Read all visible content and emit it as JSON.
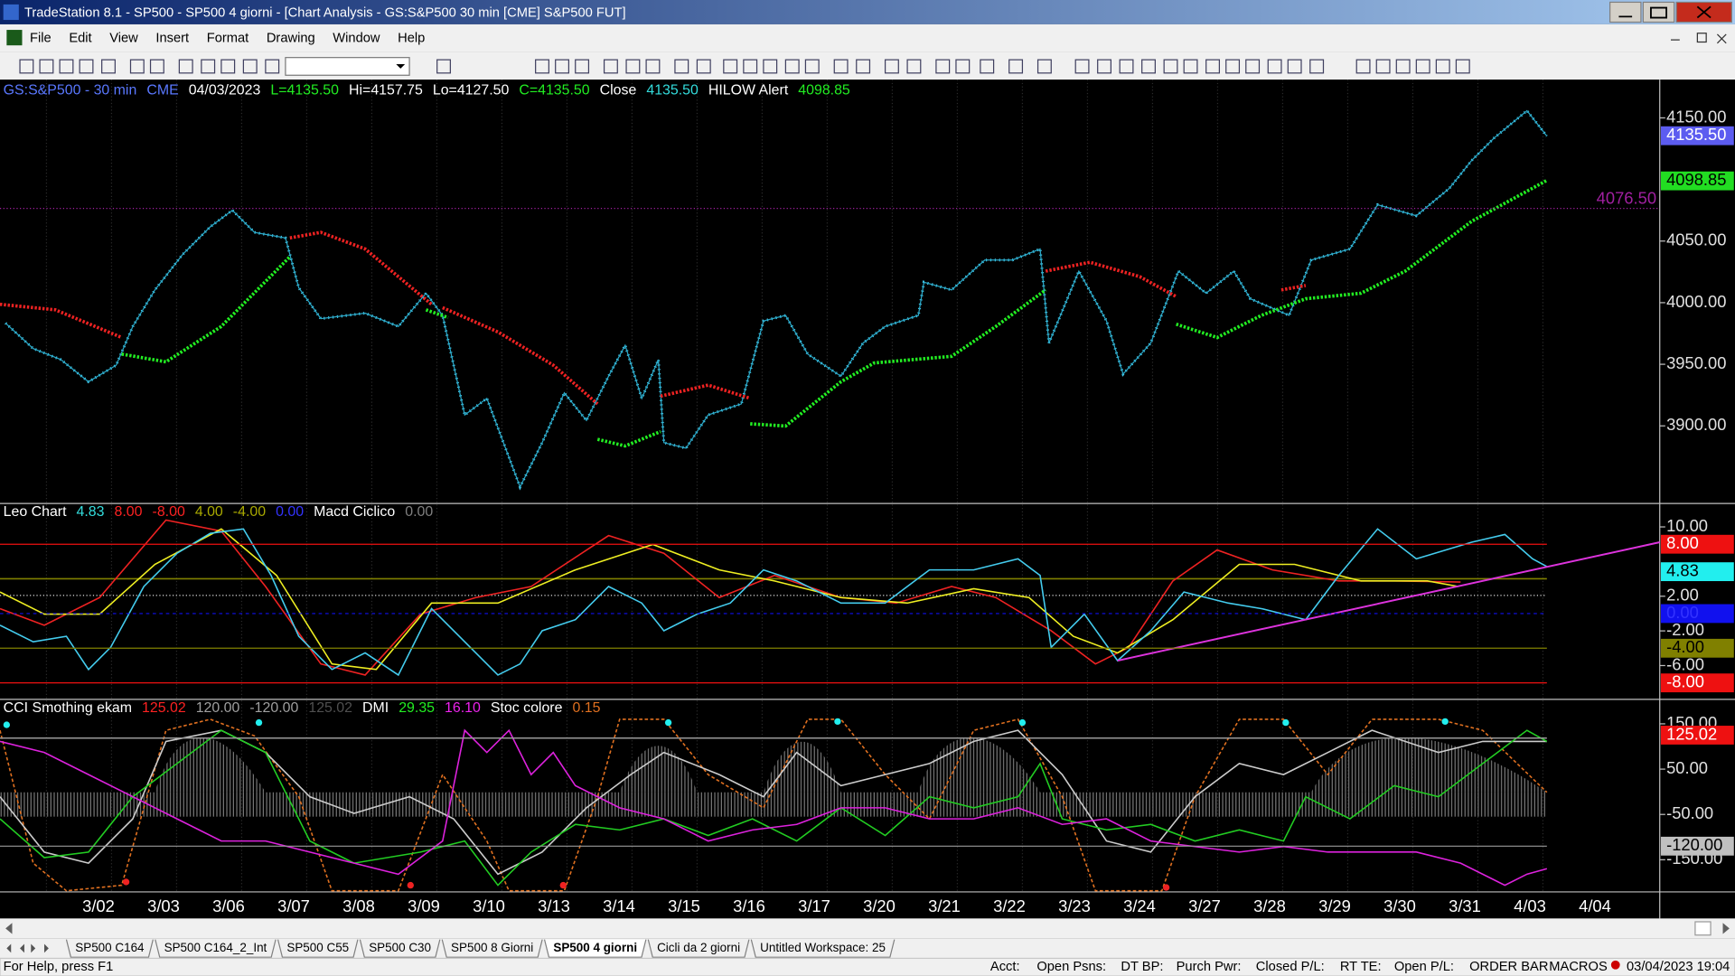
{
  "title_bar": {
    "title": "TradeStation 8.1 - SP500 - SP500 4 giorni - [Chart Analysis - GS:S&P500  30 min  [CME] S&P500 FUT]"
  },
  "menu": [
    "File",
    "Edit",
    "View",
    "Insert",
    "Format",
    "Drawing",
    "Window",
    "Help"
  ],
  "panes": [
    {
      "name": "price",
      "ylim": [
        3837,
        4181
      ],
      "header": [
        {
          "text": "GS:S&P500 - 30 min",
          "color": "#5a78ff"
        },
        {
          "text": "CME",
          "color": "#5a78ff"
        },
        {
          "text": "04/03/2023",
          "color": "#ffffff"
        },
        {
          "text": "L=4135.50",
          "color": "#22ee22"
        },
        {
          "text": "Hi=4157.75",
          "color": "#ffffff"
        },
        {
          "text": "Lo=4127.50",
          "color": "#ffffff"
        },
        {
          "text": "C=4135.50",
          "color": "#22ee22"
        },
        {
          "text": "Close",
          "color": "#ffffff"
        },
        {
          "text": "4135.50",
          "color": "#33dddd"
        },
        {
          "text": "HILOW Alert",
          "color": "#ffffff"
        },
        {
          "text": "4098.85",
          "color": "#22ee22"
        }
      ],
      "ticks": [
        {
          "value": 4150,
          "label": "4150.00"
        },
        {
          "value": 4050,
          "label": "4050.00"
        },
        {
          "value": 4000,
          "label": "4000.00"
        },
        {
          "value": 3950,
          "label": "3950.00"
        },
        {
          "value": 3900,
          "label": "3900.00"
        }
      ],
      "markers": [
        {
          "value": 4135.5,
          "label": "4135.50",
          "bg": "#5c5cf0",
          "color": "#ffffff"
        },
        {
          "value": 4098.85,
          "label": "4098.85",
          "bg": "#22dd22",
          "color": "#000000"
        }
      ],
      "level": {
        "value": 4076.5,
        "label": "4076.50",
        "color": "#a020a0"
      }
    },
    {
      "name": "leo",
      "ylim": [
        -9.9,
        12.7
      ],
      "header": [
        {
          "text": "Leo Chart",
          "color": "#ffffff"
        },
        {
          "text": "4.83",
          "color": "#33dddd"
        },
        {
          "text": "8.00",
          "color": "#ff2222"
        },
        {
          "text": "-8.00",
          "color": "#ff2222"
        },
        {
          "text": "4.00",
          "color": "#aaaa00"
        },
        {
          "text": "-4.00",
          "color": "#aaaa00"
        },
        {
          "text": "0.00",
          "color": "#3333ff"
        },
        {
          "text": "Macd Ciclico",
          "color": "#ffffff"
        },
        {
          "text": "0.00",
          "color": "#808080"
        }
      ],
      "ticks": [
        {
          "value": 10,
          "label": "10.00"
        },
        {
          "value": 2,
          "label": "2.00"
        },
        {
          "value": -2,
          "label": "-2.00"
        },
        {
          "value": -6,
          "label": "-6.00"
        }
      ],
      "markers": [
        {
          "value": 8,
          "label": "8.00",
          "bg": "#ee1111",
          "color": "#ffffff"
        },
        {
          "value": 4.83,
          "label": "4.83",
          "bg": "#22eeee",
          "color": "#000000"
        },
        {
          "value": 0,
          "label": "0.00",
          "bg": "#1111ee",
          "color": "#3333ff"
        },
        {
          "value": -4,
          "label": "-4.00",
          "bg": "#808000",
          "color": "#000000"
        },
        {
          "value": -8,
          "label": "-8.00",
          "bg": "#ee1111",
          "color": "#ffffff"
        }
      ]
    },
    {
      "name": "cci",
      "ylim": [
        -221,
        204
      ],
      "header": [
        {
          "text": "CCI Smothing ekam",
          "color": "#ffffff"
        },
        {
          "text": "125.02",
          "color": "#ff2222"
        },
        {
          "text": "120.00",
          "color": "#a0a0a0"
        },
        {
          "text": "-120.00",
          "color": "#a0a0a0"
        },
        {
          "text": "125.02",
          "color": "#505050"
        },
        {
          "text": "DMI",
          "color": "#ffffff"
        },
        {
          "text": "29.35",
          "color": "#22ee22"
        },
        {
          "text": "16.10",
          "color": "#ee22ee"
        },
        {
          "text": "Stoc colore",
          "color": "#ffffff"
        },
        {
          "text": "0.15",
          "color": "#e07020"
        }
      ],
      "ticks": [
        {
          "value": 150,
          "label": "150.00"
        },
        {
          "value": 50,
          "label": "50.00"
        },
        {
          "value": -50,
          "label": "-50.00"
        },
        {
          "value": -150,
          "label": "-150.00"
        }
      ],
      "markers": [
        {
          "value": 125.02,
          "label": "125.02",
          "bg": "#ee1111",
          "color": "#ffffff"
        },
        {
          "value": -120,
          "label": "-120.00",
          "bg": "#c0c0c0",
          "color": "#000000"
        }
      ]
    }
  ],
  "dates": [
    "3/02",
    "3/03",
    "3/06",
    "3/07",
    "3/08",
    "3/09",
    "3/10",
    "3/13",
    "3/14",
    "3/15",
    "3/16",
    "3/17",
    "3/20",
    "3/21",
    "3/22",
    "3/23",
    "3/24",
    "3/27",
    "3/28",
    "3/29",
    "3/30",
    "3/31",
    "4/03",
    "4/04"
  ],
  "tabs": [
    "SP500 C164",
    "SP500 C164_2_Int",
    "SP500 C55",
    "SP500 C30",
    "SP500 8 Giorni",
    "SP500 4 giorni",
    "Cicli da 2 giorni",
    "Untitled Workspace:  25"
  ],
  "active_tab": 5,
  "status": {
    "help": "For Help, press F1",
    "fields": [
      "Acct:",
      "Open Psns:",
      "DT BP:",
      "Purch Pwr:",
      "Closed P/L:",
      "RT TE:",
      "Open P/L:"
    ],
    "order_bar": "ORDER BAR",
    "macros": "MACROS",
    "clock": "03/04/2023 19:04"
  }
}
